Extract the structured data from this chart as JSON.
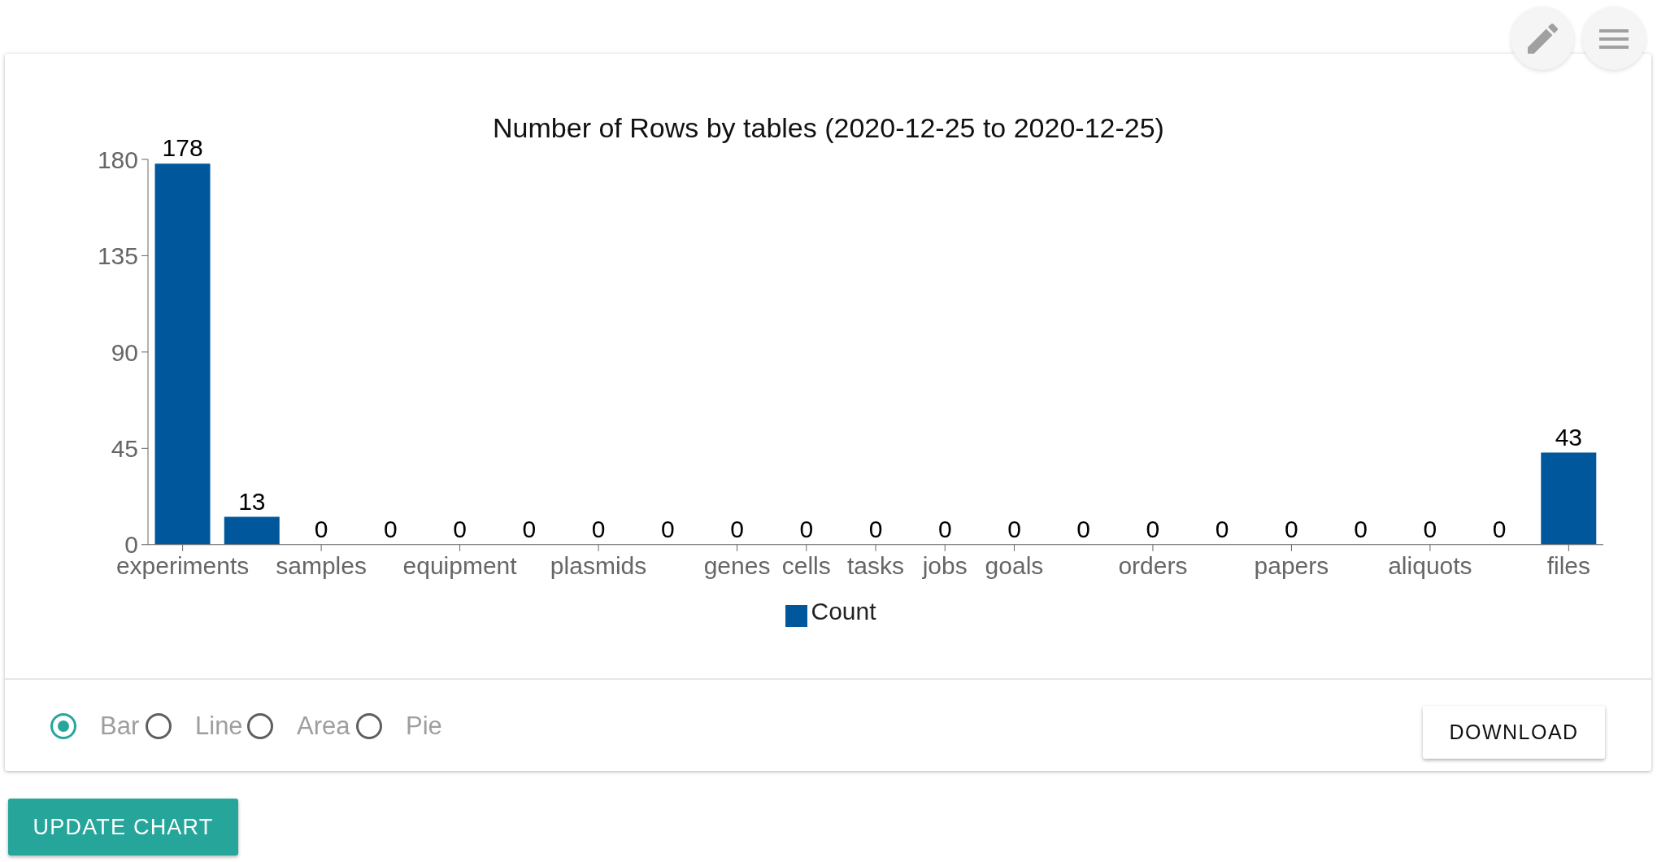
{
  "chart_data": {
    "type": "bar",
    "title": "Number of Rows by tables (2020-12-25 to 2020-12-25)",
    "categories": [
      "experiments",
      null,
      "samples",
      null,
      "equipment",
      null,
      "plasmids",
      null,
      "genes",
      "cells",
      "tasks",
      "jobs",
      "goals",
      null,
      "orders",
      null,
      "papers",
      null,
      "aliquots",
      null,
      "files"
    ],
    "series": [
      {
        "name": "Count",
        "color": "#01579b",
        "values": [
          178,
          13,
          0,
          0,
          0,
          0,
          0,
          0,
          0,
          0,
          0,
          0,
          0,
          0,
          0,
          0,
          0,
          0,
          0,
          0,
          43
        ]
      }
    ],
    "ylim": [
      0,
      180
    ],
    "yticks": [
      0,
      45,
      90,
      135,
      180
    ],
    "data_labels": true,
    "legend": "bottom",
    "annotations": [
      "Bar",
      "Line",
      "Area",
      "Pie",
      "DOWNLOAD",
      "UPDATE CHART"
    ]
  }
}
